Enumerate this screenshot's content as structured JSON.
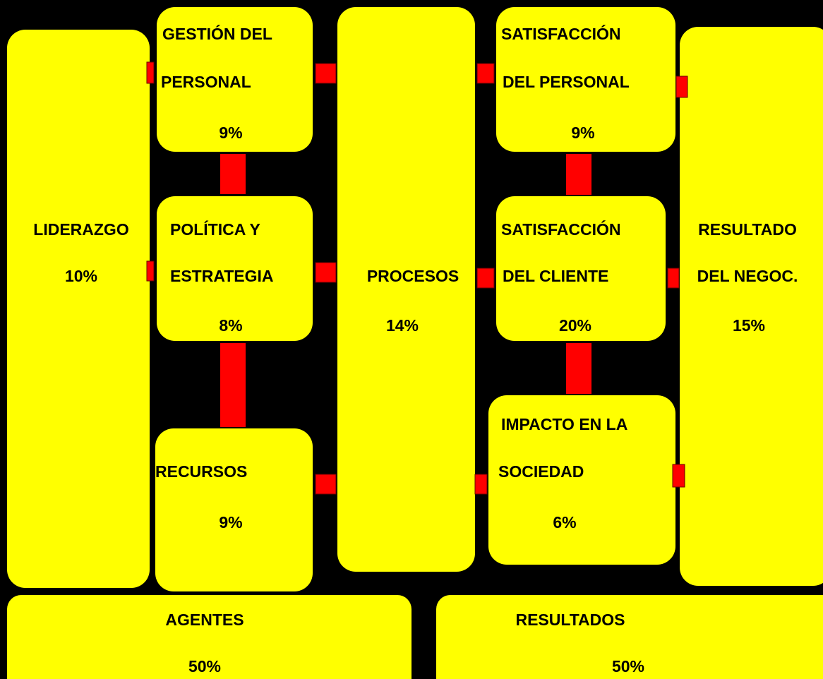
{
  "nodes": [
    {
      "lines": [
        "LIDERAZGO",
        "10%"
      ]
    },
    {
      "lines": [
        "GESTIÓN DEL",
        "PERSONAL",
        "9%"
      ]
    },
    {
      "lines": [
        "POLÍTICA Y",
        "ESTRATEGIA",
        "8%"
      ]
    },
    {
      "lines": [
        "RECURSOS",
        "9%"
      ]
    },
    {
      "lines": [
        "PROCESOS",
        "14%"
      ]
    },
    {
      "lines": [
        "SATISFACCIÓN",
        "DEL PERSONAL",
        "9%"
      ]
    },
    {
      "lines": [
        "SATISFACCIÓN",
        "DEL CLIENTE",
        "20%"
      ]
    },
    {
      "lines": [
        "IMPACTO EN LA",
        "SOCIEDAD",
        "6%"
      ]
    },
    {
      "lines": [
        "RESULTADO",
        "DEL NEGOC.",
        "15%"
      ]
    },
    {
      "lines": [
        "AGENTES",
        "50%"
      ]
    },
    {
      "lines": [
        "RESULTADOS",
        "50%"
      ]
    }
  ]
}
